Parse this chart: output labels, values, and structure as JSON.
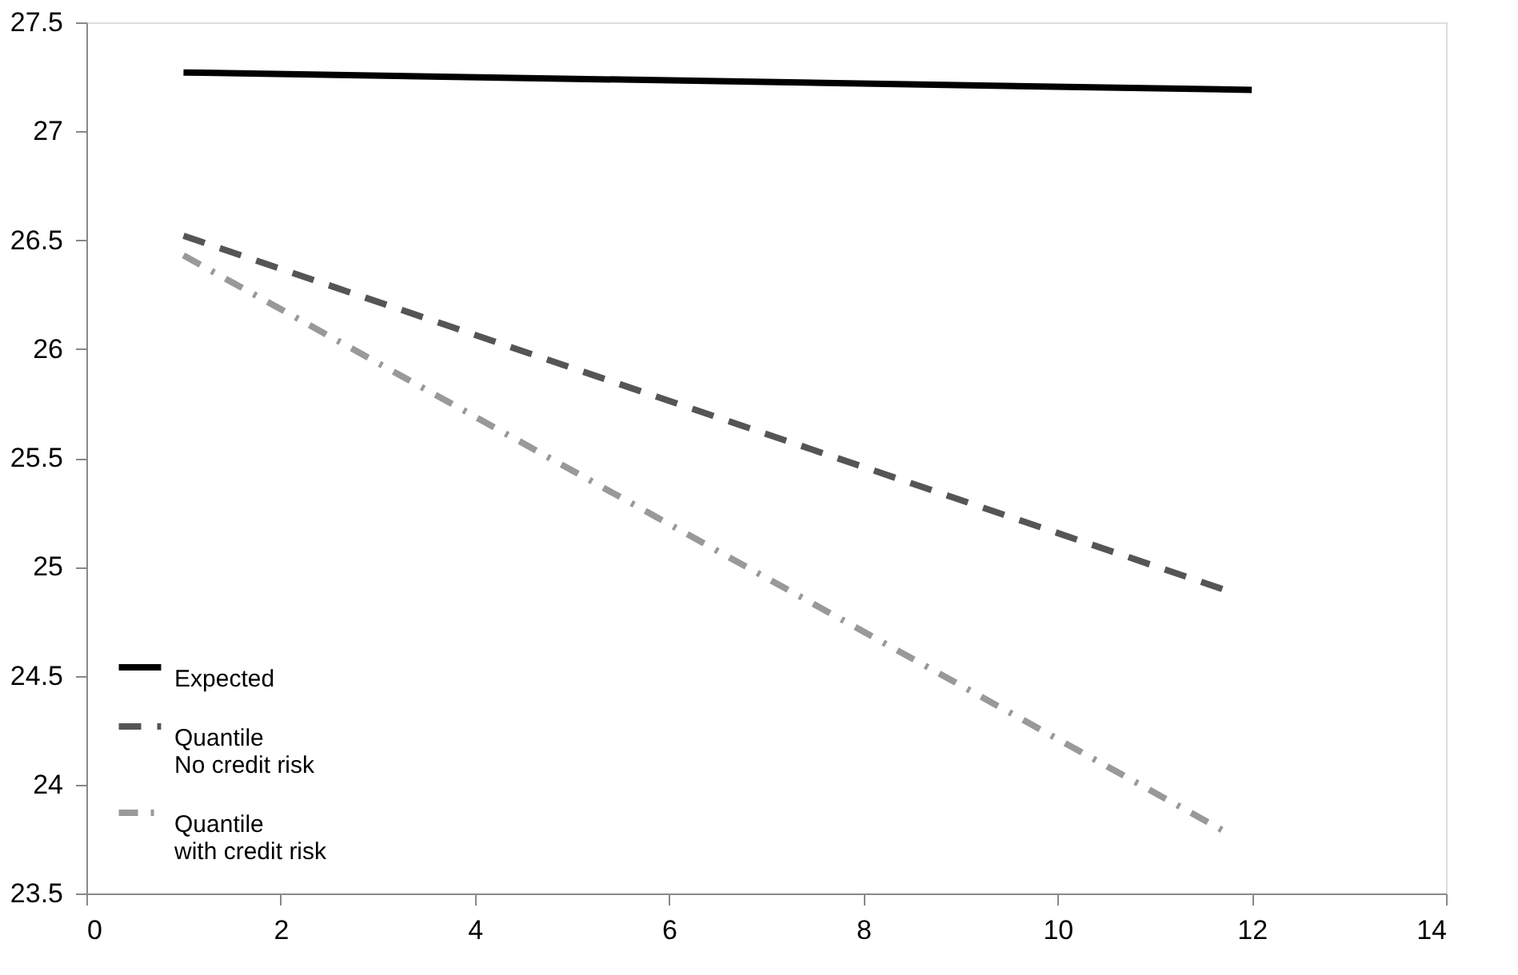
{
  "chart_data": {
    "type": "line",
    "xlim": [
      0,
      14
    ],
    "xticks": [
      0,
      2,
      4,
      6,
      8,
      10,
      12,
      14
    ],
    "ylim": [
      23.5,
      27.5
    ],
    "yticks": [
      23.5,
      24,
      24.5,
      25,
      25.5,
      26,
      26.5,
      27,
      27.5
    ],
    "grid": false,
    "legend": "bottom left",
    "series": [
      {
        "name": "Expected",
        "color": "#000000",
        "line_style": "solid",
        "x": [
          1,
          12
        ],
        "values": [
          27.27,
          27.19
        ]
      },
      {
        "name": "Quantile\nNo credit risk",
        "color": "#555555",
        "line_style": "dashed",
        "x": [
          1,
          11.75
        ],
        "values": [
          26.52,
          24.89
        ]
      },
      {
        "name": "Quantile\nwith credit risk",
        "color": "#999999",
        "line_style": "dashdot",
        "x": [
          1,
          11.7
        ],
        "values": [
          26.43,
          23.79
        ]
      }
    ]
  }
}
